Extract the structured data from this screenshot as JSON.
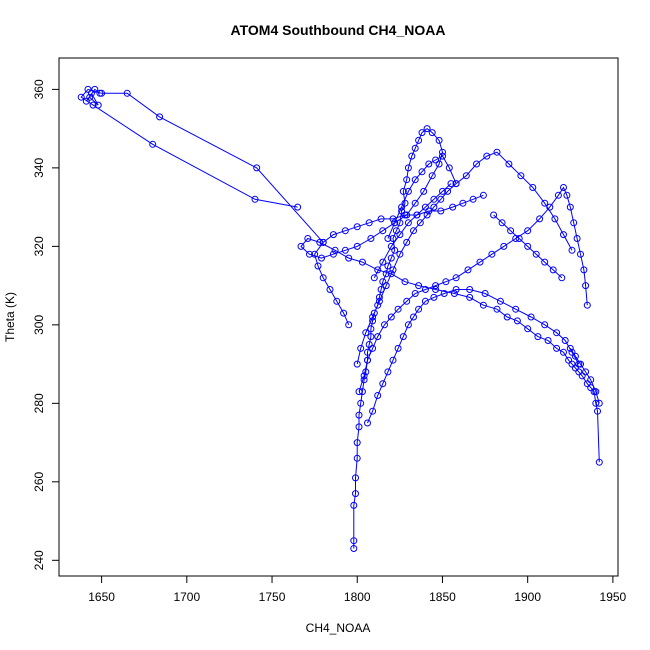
{
  "chart_data": {
    "type": "scatter",
    "title": "ATOM4 Southbound CH4_NOAA",
    "xlabel": "CH4_NOAA",
    "ylabel": "Theta (K)",
    "xlim": [
      1625,
      1953
    ],
    "ylim": [
      236,
      368
    ],
    "xticks": [
      1650,
      1700,
      1750,
      1800,
      1850,
      1900,
      1950
    ],
    "yticks": [
      240,
      260,
      280,
      300,
      320,
      340,
      360
    ],
    "grid": false,
    "legend": "none",
    "color": "#0000ff",
    "series": [
      {
        "x": [
          1798,
          1798,
          1798,
          1799,
          1799,
          1800,
          1800,
          1801,
          1801,
          1802,
          1803,
          1804,
          1805,
          1806,
          1806,
          1807,
          1808,
          1808,
          1809,
          1810,
          1812,
          1813,
          1814,
          1815,
          1817,
          1818,
          1820,
          1822,
          1821,
          1823,
          1825,
          1826,
          1828,
          1827,
          1829,
          1830,
          1832,
          1834,
          1836,
          1838,
          1841,
          1844,
          1848,
          1850,
          1848,
          1844,
          1839,
          1834,
          1829,
          1822,
          1815,
          1808,
          1800,
          1793,
          1786,
          1779,
          1772,
          1767,
          1771,
          1778,
          1787,
          1795,
          1803,
          1812,
          1820,
          1828,
          1836,
          1846,
          1857,
          1866,
          1874,
          1882,
          1888,
          1894,
          1900,
          1906,
          1912,
          1917,
          1921,
          1924,
          1926,
          1928,
          1930,
          1932,
          1935,
          1937,
          1939,
          1940,
          1941,
          1942
        ],
        "y": [
          243,
          245,
          254,
          257,
          261,
          266,
          270,
          274,
          277,
          280,
          283,
          286,
          288,
          291,
          293,
          295,
          297,
          299,
          301,
          303,
          305,
          307,
          309,
          311,
          313,
          315,
          317,
          319,
          322,
          324,
          326,
          329,
          331,
          334,
          337,
          340,
          343,
          345,
          347,
          349,
          350,
          349,
          347,
          344,
          341,
          338,
          334,
          331,
          328,
          326,
          324,
          322,
          320,
          319,
          318,
          317,
          318,
          320,
          322,
          321,
          319,
          317,
          316,
          314,
          313,
          311,
          310,
          309,
          308,
          307,
          305,
          304,
          302,
          301,
          299,
          297,
          296,
          294,
          293,
          291,
          290,
          289,
          288,
          287,
          285,
          284,
          283,
          280,
          278,
          265
        ]
      },
      {
        "x": [
          1801,
          1804,
          1806,
          1809,
          1812,
          1816,
          1820,
          1824,
          1829,
          1834,
          1840,
          1846,
          1852,
          1858,
          1865,
          1872,
          1879,
          1886,
          1893,
          1900,
          1907,
          1913,
          1918,
          1921,
          1923,
          1925,
          1927,
          1929,
          1931,
          1933,
          1934,
          1935
        ],
        "y": [
          283,
          287,
          291,
          294,
          297,
          300,
          302,
          304,
          306,
          308,
          309,
          310,
          311,
          312,
          314,
          316,
          318,
          320,
          322,
          324,
          327,
          330,
          333,
          335,
          333,
          330,
          326,
          322,
          318,
          314,
          310,
          305
        ]
      },
      {
        "x": [
          1800,
          1802,
          1805,
          1809,
          1813,
          1817,
          1821,
          1825,
          1829,
          1833,
          1837,
          1841,
          1845,
          1849,
          1853,
          1858,
          1864,
          1870,
          1876,
          1882,
          1889,
          1896,
          1903,
          1910,
          1916,
          1921,
          1926
        ],
        "y": [
          290,
          294,
          298,
          302,
          306,
          310,
          314,
          318,
          321,
          324,
          326,
          328,
          330,
          332,
          334,
          336,
          338,
          341,
          343,
          344,
          341,
          338,
          335,
          331,
          327,
          323,
          319
        ]
      },
      {
        "x": [
          1795,
          1792,
          1788,
          1784,
          1780,
          1777,
          1775,
          1780,
          1786,
          1793,
          1800,
          1807,
          1814,
          1821,
          1828,
          1835,
          1842,
          1849,
          1856,
          1862,
          1868,
          1874
        ],
        "y": [
          300,
          303,
          306,
          309,
          312,
          315,
          318,
          321,
          323,
          324,
          325,
          326,
          327,
          327,
          328,
          328,
          329,
          329,
          330,
          331,
          332,
          333
        ]
      },
      {
        "x": [
          1806,
          1809,
          1812,
          1815,
          1818,
          1821,
          1824,
          1827,
          1830,
          1833,
          1836,
          1840,
          1845,
          1851,
          1858,
          1866,
          1875,
          1884,
          1893,
          1902,
          1910,
          1917,
          1922,
          1926,
          1930
        ],
        "y": [
          275,
          278,
          282,
          285,
          288,
          291,
          294,
          297,
          300,
          302,
          304,
          306,
          307,
          308,
          309,
          309,
          308,
          306,
          304,
          302,
          300,
          298,
          296,
          293,
          290
        ]
      },
      {
        "x": [
          1765,
          1740,
          1680,
          1645,
          1638,
          1642,
          1650,
          1665,
          1684,
          1741,
          1780
        ],
        "y": [
          330,
          332,
          346,
          356,
          358,
          360,
          359,
          359,
          353,
          340,
          321
        ]
      },
      {
        "x": [
          1644,
          1648,
          1643,
          1641,
          1646,
          1649
        ],
        "y": [
          359,
          356,
          358,
          357,
          360,
          359
        ]
      },
      {
        "x": [
          1810,
          1815,
          1820,
          1825,
          1830,
          1835,
          1840,
          1845,
          1850,
          1855
        ],
        "y": [
          312,
          316,
          320,
          323,
          326,
          328,
          330,
          332,
          334,
          336
        ]
      },
      {
        "x": [
          1818,
          1822,
          1826,
          1830,
          1834,
          1838,
          1842,
          1846,
          1850,
          1854,
          1858
        ],
        "y": [
          322,
          326,
          330,
          334,
          337,
          339,
          341,
          342,
          343,
          340,
          336
        ]
      },
      {
        "x": [
          1880,
          1885,
          1890,
          1895,
          1900,
          1905,
          1910,
          1915,
          1920
        ],
        "y": [
          328,
          326,
          324,
          322,
          320,
          318,
          316,
          314,
          312
        ]
      },
      {
        "x": [
          1925,
          1928,
          1931,
          1934,
          1937,
          1940,
          1942
        ],
        "y": [
          294,
          292,
          290,
          288,
          286,
          283,
          280
        ]
      }
    ]
  }
}
